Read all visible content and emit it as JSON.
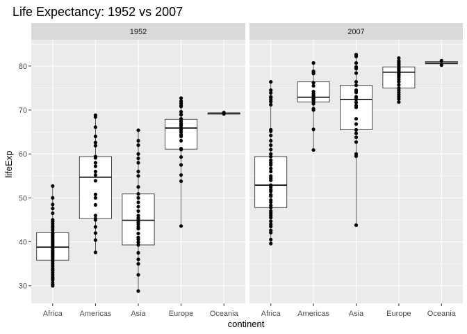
{
  "chart_data": {
    "type": "boxplot",
    "title": "Life Expectancy: 1952 vs 2007",
    "xlabel": "continent",
    "ylabel": "lifeExp",
    "ylim": [
      26,
      86
    ],
    "y_ticks": [
      30,
      40,
      50,
      60,
      70,
      80
    ],
    "categories": [
      "Africa",
      "Americas",
      "Asia",
      "Europe",
      "Oceania"
    ],
    "grid": true,
    "panels": [
      {
        "label": "1952",
        "boxes": [
          {
            "category": "Africa",
            "min": 30.0,
            "q1": 35.8,
            "median": 38.8,
            "q3": 42.1,
            "max": 52.7,
            "points": [
              30.0,
              30.3,
              30.7,
              31.3,
              31.6,
              32.0,
              32.5,
              33.0,
              33.5,
              33.6,
              34.0,
              34.5,
              35.0,
              35.5,
              35.9,
              36.3,
              36.7,
              37.0,
              37.3,
              37.5,
              37.8,
              38.1,
              38.5,
              38.8,
              39.0,
              39.3,
              39.6,
              39.9,
              40.2,
              40.5,
              40.8,
              41.2,
              41.5,
              41.9,
              42.1,
              42.7,
              43.2,
              43.6,
              44.1,
              44.6,
              45.0,
              46.5,
              47.6,
              48.5,
              50.0,
              52.7
            ]
          },
          {
            "category": "Americas",
            "min": 37.6,
            "q1": 45.3,
            "median": 54.7,
            "q3": 59.4,
            "max": 68.8,
            "points": [
              37.6,
              40.4,
              42.0,
              43.4,
              45.0,
              45.3,
              46.0,
              48.4,
              50.0,
              50.8,
              53.9,
              55.2,
              56.0,
              57.2,
              58.0,
              59.1,
              59.4,
              61.9,
              62.6,
              64.0,
              66.1,
              68.4,
              68.8
            ]
          },
          {
            "category": "Asia",
            "min": 28.8,
            "q1": 39.3,
            "median": 44.9,
            "q3": 50.9,
            "max": 65.4,
            "points": [
              28.8,
              32.5,
              35.0,
              36.0,
              37.5,
              39.3,
              39.9,
              40.5,
              41.0,
              41.9,
              43.0,
              43.4,
              44.0,
              44.5,
              45.0,
              45.4,
              46.0,
              47.0,
              48.0,
              49.0,
              50.0,
              50.9,
              52.5,
              55.0,
              56.0,
              58.0,
              59.0,
              60.0,
              62.0,
              63.0,
              65.4
            ]
          },
          {
            "category": "Europe",
            "min": 43.6,
            "q1": 61.1,
            "median": 65.9,
            "q3": 67.9,
            "max": 72.7,
            "points": [
              43.6,
              53.8,
              55.2,
              57.5,
              59.3,
              61.0,
              61.2,
              63.0,
              64.0,
              64.4,
              65.0,
              65.5,
              66.0,
              66.5,
              66.9,
              67.4,
              67.5,
              68.0,
              68.9,
              69.0,
              69.6,
              70.8,
              71.0,
              71.5,
              72.0,
              72.7
            ]
          },
          {
            "category": "Oceania",
            "min": 69.1,
            "q1": 69.2,
            "median": 69.3,
            "q3": 69.3,
            "max": 69.4,
            "points": [
              69.1,
              69.4
            ]
          }
        ]
      },
      {
        "label": "2007",
        "boxes": [
          {
            "category": "Africa",
            "min": 39.6,
            "q1": 47.8,
            "median": 52.9,
            "q3": 59.4,
            "max": 76.4,
            "points": [
              39.6,
              40.5,
              42.1,
              42.6,
              43.5,
              44.0,
              44.7,
              45.5,
              46.0,
              46.5,
              47.0,
              47.8,
              48.3,
              49.0,
              49.5,
              50.4,
              50.7,
              51.5,
              51.9,
              52.5,
              52.9,
              54.0,
              54.5,
              55.0,
              56.0,
              56.7,
              57.5,
              58.0,
              58.6,
              59.4,
              60.0,
              61.0,
              62.0,
              63.0,
              64.2,
              65.2,
              65.5,
              71.2,
              71.9,
              72.3,
              72.8,
              73.0,
              73.9,
              74.5,
              76.4
            ]
          },
          {
            "category": "Americas",
            "min": 60.9,
            "q1": 71.8,
            "median": 72.9,
            "q3": 76.4,
            "max": 80.7,
            "points": [
              60.9,
              65.6,
              70.0,
              70.3,
              71.4,
              71.8,
              72.2,
              72.4,
              72.6,
              72.9,
              73.0,
              73.3,
              73.7,
              74.2,
              75.5,
              76.2,
              78.3,
              78.6,
              78.8,
              80.7
            ]
          },
          {
            "category": "Asia",
            "min": 43.8,
            "q1": 65.5,
            "median": 72.4,
            "q3": 75.6,
            "max": 82.6,
            "points": [
              43.8,
              59.5,
              60.0,
              62.7,
              63.8,
              64.7,
              65.5,
              66.8,
              68.0,
              70.6,
              71.0,
              71.7,
              72.4,
              72.9,
              73.0,
              74.0,
              74.2,
              74.5,
              75.6,
              76.4,
              78.4,
              79.4,
              79.8,
              80.7,
              82.2,
              82.6
            ]
          },
          {
            "category": "Europe",
            "min": 71.8,
            "q1": 75.0,
            "median": 78.6,
            "q3": 79.8,
            "max": 81.8,
            "points": [
              71.8,
              72.5,
              73.0,
              73.5,
              74.0,
              74.5,
              75.0,
              75.7,
              76.4,
              76.5,
              77.0,
              77.5,
              77.9,
              78.1,
              78.3,
              78.6,
              79.0,
              79.3,
              79.4,
              79.5,
              79.8,
              80.2,
              80.5,
              80.9,
              81.2,
              81.8
            ]
          },
          {
            "category": "Oceania",
            "min": 80.2,
            "q1": 80.5,
            "median": 80.7,
            "q3": 81.0,
            "max": 81.2,
            "points": [
              80.2,
              81.2
            ]
          }
        ]
      }
    ]
  }
}
